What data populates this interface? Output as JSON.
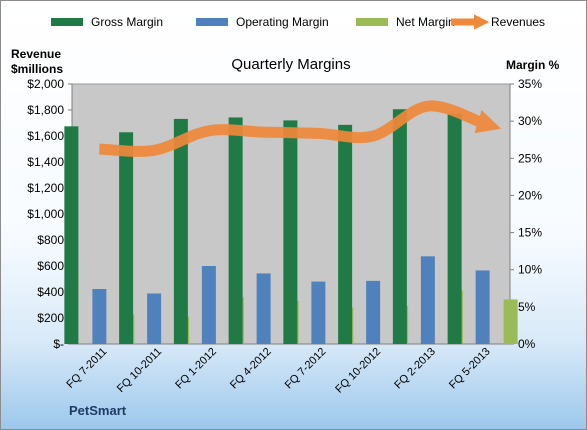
{
  "chart_data": {
    "type": "bar",
    "title": "Quarterly Margins",
    "company": "PetSmart",
    "left_axis_title": "Revenue\n$millions",
    "right_axis_title": "Margin %",
    "categories": [
      "FQ 7-2011",
      "FQ 10-2011",
      "FQ 1-2012",
      "FQ 4-2012",
      "FQ 7-2012",
      "FQ 10-2012",
      "FQ 2-2013",
      "FQ 5-2013"
    ],
    "y_left": {
      "min": 0,
      "max": 2000,
      "step": 200,
      "tick_labels": [
        "$-",
        "$200",
        "$400",
        "$600",
        "$800",
        "$1,000",
        "$1,200",
        "$1,400",
        "$1,600",
        "$1,800",
        "$2,000"
      ]
    },
    "y_right": {
      "min": 0,
      "max": 35,
      "step": 5,
      "tick_labels": [
        "0%",
        "5%",
        "10%",
        "15%",
        "20%",
        "25%",
        "30%",
        "35%"
      ]
    },
    "series": [
      {
        "name": "Gross Margin",
        "type": "bar",
        "axis": "right",
        "color": "#1f7a45",
        "values": [
          29.3,
          28.5,
          30.3,
          30.5,
          30.1,
          29.5,
          31.6,
          31.0
        ]
      },
      {
        "name": "Operating Margin",
        "type": "bar",
        "axis": "right",
        "color": "#4f81bd",
        "values": [
          7.4,
          6.8,
          10.5,
          9.5,
          8.4,
          8.5,
          11.8,
          9.9
        ]
      },
      {
        "name": "Net Margin",
        "type": "bar",
        "axis": "right",
        "color": "#9bbb59",
        "values": [
          4.0,
          3.7,
          6.3,
          5.8,
          4.9,
          5.1,
          7.2,
          6.0
        ]
      },
      {
        "name": "Revenues",
        "type": "line",
        "axis": "left",
        "color": "#f0883a",
        "values": [
          1500,
          1490,
          1640,
          1630,
          1620,
          1600,
          1830,
          1700
        ]
      }
    ],
    "legend_position": "top",
    "grid": false
  }
}
